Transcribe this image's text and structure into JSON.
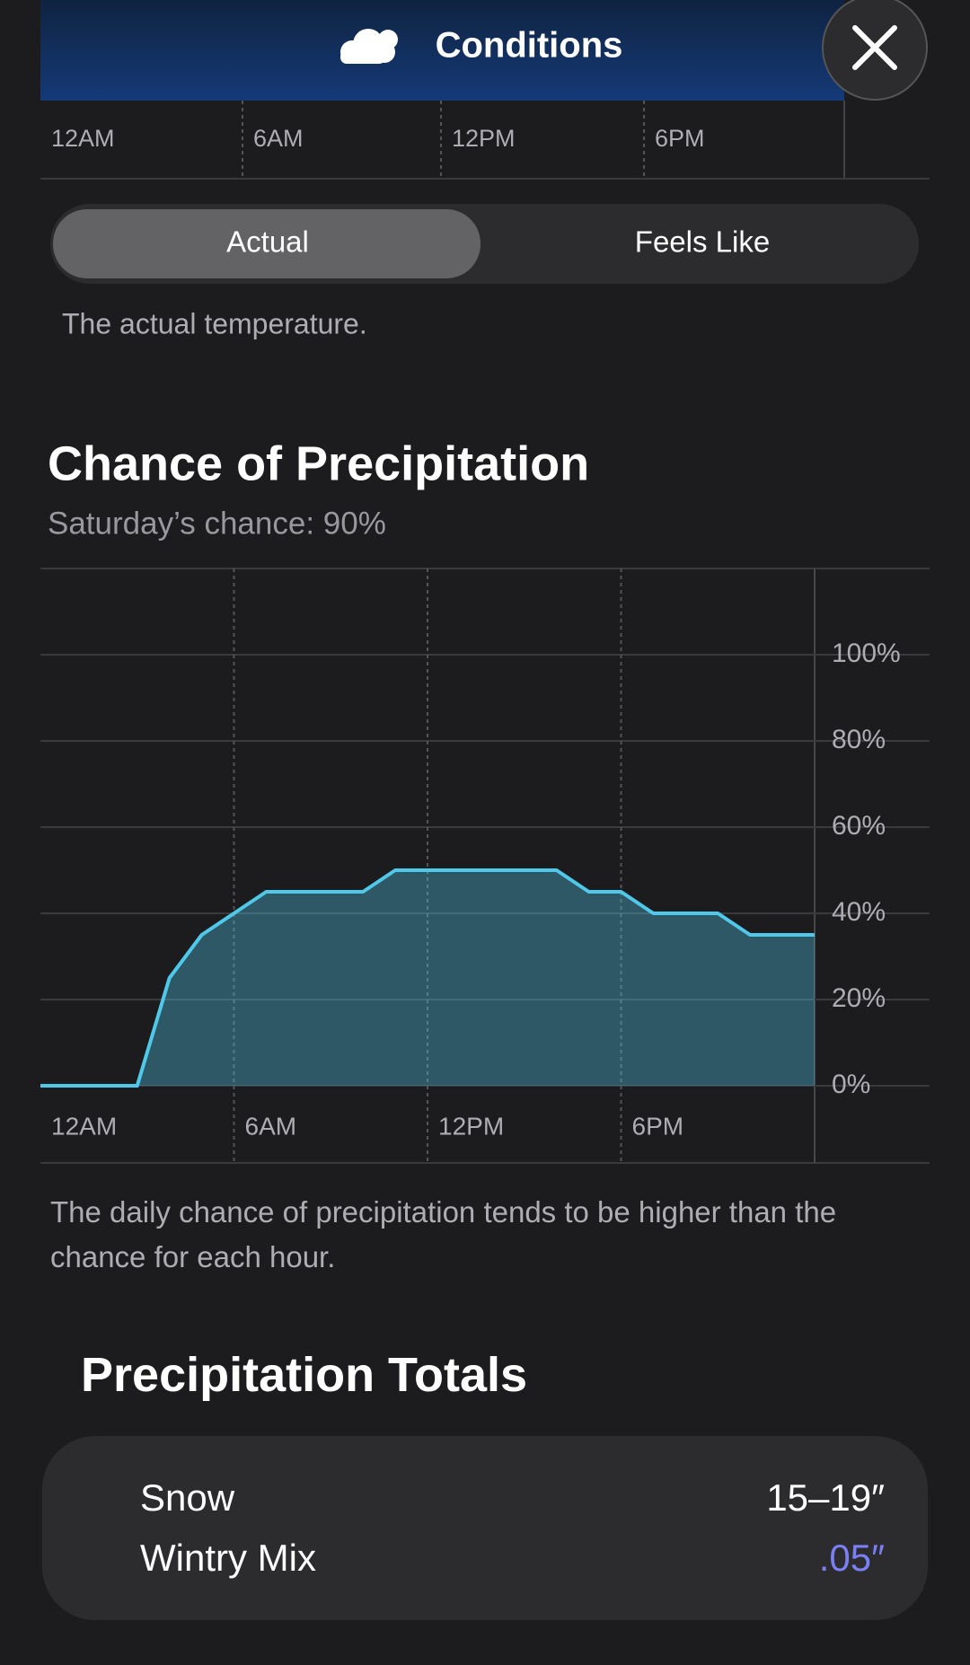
{
  "header": {
    "title": "Conditions"
  },
  "temperature_axis": {
    "labels": [
      "12AM",
      "6AM",
      "12PM",
      "6PM"
    ]
  },
  "segmented_control": {
    "options": [
      "Actual",
      "Feels Like"
    ]
  },
  "temperature_description": "The actual temperature.",
  "chart_data": {
    "type": "area",
    "title": "Chance of Precipitation",
    "subtitle": "Saturday’s chance: 90%",
    "x": [
      0,
      3,
      4,
      5,
      7,
      10,
      11,
      16,
      17,
      18,
      19,
      21,
      22,
      24
    ],
    "values": [
      0,
      0,
      25,
      35,
      45,
      45,
      50,
      50,
      45,
      45,
      40,
      40,
      35,
      35
    ],
    "color": "#4fc8ea",
    "xlim": [
      0,
      24
    ],
    "xticks": [
      {
        "value": 0,
        "label": "12AM"
      },
      {
        "value": 6,
        "label": "6AM"
      },
      {
        "value": 12,
        "label": "12PM"
      },
      {
        "value": 18,
        "label": "6PM"
      }
    ],
    "ylim": [
      0,
      120
    ],
    "yticks": [
      {
        "value": 0,
        "label": "0%"
      },
      {
        "value": 20,
        "label": "20%"
      },
      {
        "value": 40,
        "label": "40%"
      },
      {
        "value": 60,
        "label": "60%"
      },
      {
        "value": 80,
        "label": "80%"
      },
      {
        "value": 100,
        "label": "100%"
      }
    ],
    "grid": true
  },
  "note": "The daily chance of precipitation tends to be higher than the chance for each hour.",
  "totals": {
    "title": "Precipitation Totals",
    "items": [
      {
        "name": "Snow",
        "amount": "15–19″",
        "color": "#ffffff"
      },
      {
        "name": "Wintry Mix",
        "amount": ".05″",
        "color": "#7b7ff5"
      }
    ]
  }
}
